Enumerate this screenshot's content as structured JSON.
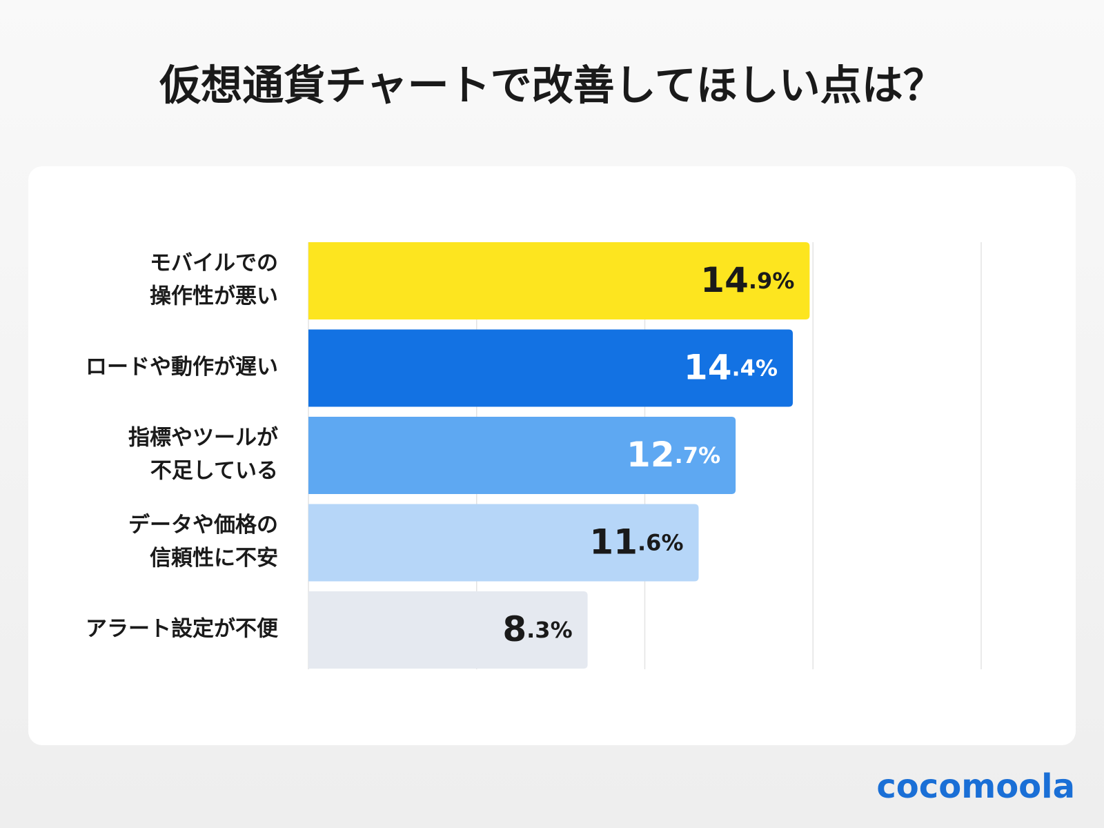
{
  "chart_data": {
    "type": "barh",
    "title": "仮想通貨チャートで改善してほしい点は？",
    "categories": [
      [
        "モバイルでの",
        "操作性が悪い"
      ],
      [
        "ロードや動作が遅い"
      ],
      [
        "指標やツールが",
        "不足している"
      ],
      [
        "データや価格の",
        "信頼性に不安"
      ],
      [
        "アラート設定が不便"
      ]
    ],
    "values": [
      14.9,
      14.4,
      12.7,
      11.6,
      8.3
    ],
    "value_labels": [
      "14.9%",
      "14.4%",
      "12.7%",
      "11.6%",
      "8.3%"
    ],
    "colors": [
      "#fde51f",
      "#1372e3",
      "#5ea8f2",
      "#b6d6f8",
      "#e5e9f0"
    ],
    "label_colors": [
      "#1a1a1a",
      "#ffffff",
      "#ffffff",
      "#1a1a1a",
      "#1a1a1a"
    ],
    "xlim": [
      0,
      20
    ],
    "xticks": [
      0,
      5,
      10,
      15,
      20
    ],
    "grid": true,
    "brand": "cocomoola"
  }
}
